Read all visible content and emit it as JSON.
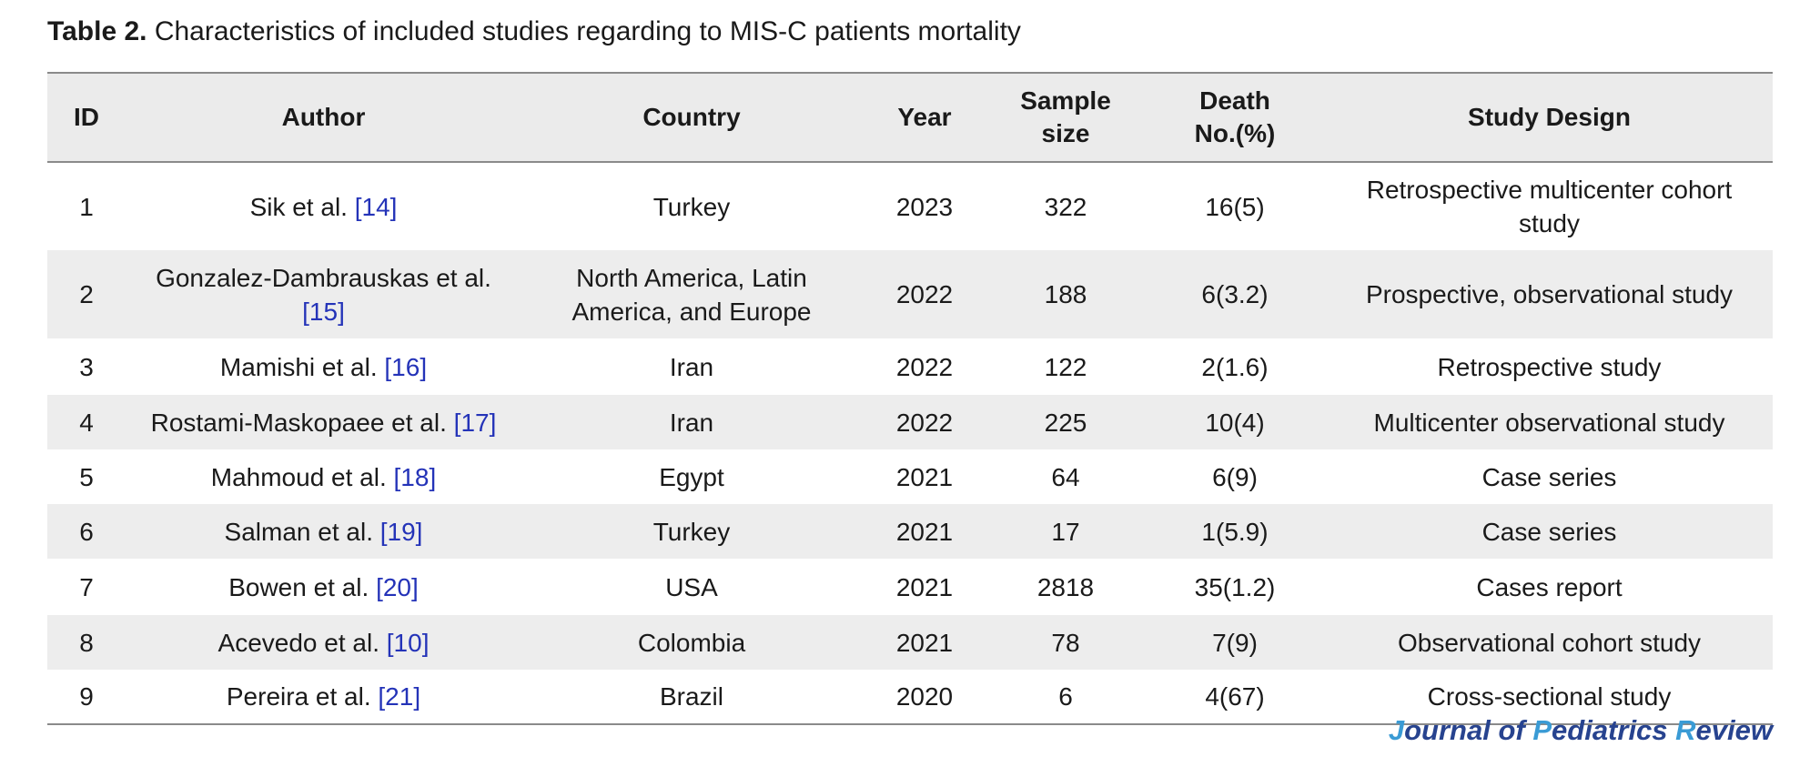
{
  "caption": {
    "label": "Table 2.",
    "text": "Characteristics of included studies regarding to MIS-C patients mortality"
  },
  "headers": {
    "id": "ID",
    "author": "Author",
    "country": "Country",
    "year": "Year",
    "sample_1": "Sample",
    "sample_2": "size",
    "death_1": "Death",
    "death_2": "No.(%)",
    "design": "Study Design"
  },
  "rows": [
    {
      "id": "1",
      "author": "Sik et al. ",
      "ref": "[14]",
      "country": "Turkey",
      "year": "2023",
      "sample": "322",
      "death": "16(5)",
      "design": "Retrospective multicenter cohort study"
    },
    {
      "id": "2",
      "author": "Gonzalez-Dambrauskas et al. ",
      "ref": "[15]",
      "country": "North America, Latin America, and Europe",
      "year": "2022",
      "sample": "188",
      "death": "6(3.2)",
      "design": "Prospective, observational study"
    },
    {
      "id": "3",
      "author": "Mamishi et al. ",
      "ref": "[16]",
      "country": "Iran",
      "year": "2022",
      "sample": "122",
      "death": "2(1.6)",
      "design": "Retrospective study"
    },
    {
      "id": "4",
      "author": "Rostami-Maskopaee et al. ",
      "ref": "[17]",
      "country": "Iran",
      "year": "2022",
      "sample": "225",
      "death": "10(4)",
      "design": "Multicenter observational study"
    },
    {
      "id": "5",
      "author": "Mahmoud et al. ",
      "ref": "[18]",
      "country": "Egypt",
      "year": "2021",
      "sample": "64",
      "death": "6(9)",
      "design": "Case series"
    },
    {
      "id": "6",
      "author": "Salman et al. ",
      "ref": "[19]",
      "country": "Turkey",
      "year": "2021",
      "sample": "17",
      "death": "1(5.9)",
      "design": "Case series"
    },
    {
      "id": "7",
      "author": "Bowen et al. ",
      "ref": "[20]",
      "country": "USA",
      "year": "2021",
      "sample": "2818",
      "death": "35(1.2)",
      "design": "Cases report"
    },
    {
      "id": "8",
      "author": "Acevedo et al. ",
      "ref": "[10]",
      "country": "Colombia",
      "year": "2021",
      "sample": "78",
      "death": "7(9)",
      "design": "Observational cohort study"
    },
    {
      "id": "9",
      "author": "Pereira et al. ",
      "ref": "[21]",
      "country": "Brazil",
      "year": "2020",
      "sample": "6",
      "death": "4(67)",
      "design": "Cross-sectional study"
    }
  ],
  "journal": {
    "j": "J",
    "ournal": "ournal of ",
    "p": "P",
    "ediatrics": "ediatrics ",
    "r": "R",
    "eview": "eview"
  }
}
